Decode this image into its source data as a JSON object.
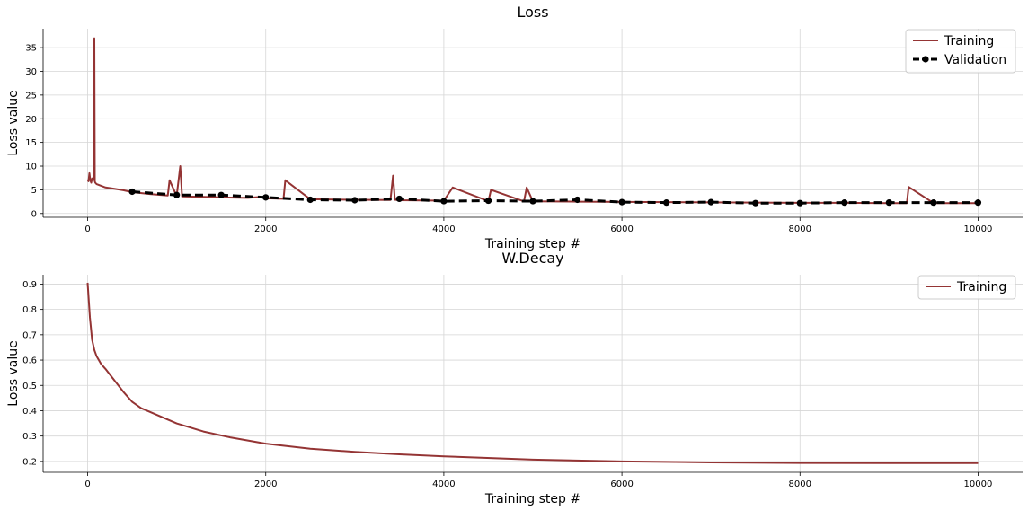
{
  "colors": {
    "training": "#943434",
    "validation": "#000000"
  },
  "chart_data": [
    {
      "type": "line",
      "title": "Loss",
      "xlabel": "Training step #",
      "ylabel": "Loss value",
      "xlim": [
        -500,
        10500
      ],
      "ylim": [
        -0.8,
        39
      ],
      "xticks": [
        0,
        2000,
        4000,
        6000,
        8000,
        10000
      ],
      "yticks": [
        0,
        5,
        10,
        15,
        20,
        25,
        30,
        35
      ],
      "grid": true,
      "legend": "top-right",
      "legend_entries": [
        "Training",
        "Validation"
      ],
      "series": [
        {
          "name": "Training",
          "x": [
            0,
            10,
            20,
            30,
            40,
            50,
            60,
            70,
            75,
            80,
            85,
            100,
            200,
            300,
            400,
            500,
            700,
            900,
            920,
            1000,
            1040,
            1060,
            1300,
            1500,
            1800,
            1950,
            2000,
            2200,
            2220,
            2500,
            3000,
            3400,
            3430,
            3450,
            3500,
            4000,
            4100,
            4500,
            4530,
            4900,
            4930,
            5000,
            5500,
            6000,
            6500,
            7000,
            7500,
            8000,
            8500,
            9000,
            9200,
            9220,
            9500,
            10000
          ],
          "y": [
            7.2,
            6.8,
            8.5,
            7.0,
            6.5,
            7.4,
            7.0,
            7.5,
            37.0,
            6.8,
            6.5,
            6.2,
            5.5,
            5.2,
            4.9,
            4.5,
            4.1,
            3.8,
            7.0,
            3.7,
            10.0,
            3.6,
            3.5,
            3.4,
            3.3,
            3.5,
            3.2,
            3.1,
            7.0,
            3.0,
            2.9,
            2.85,
            8.0,
            2.9,
            2.8,
            2.7,
            5.5,
            2.6,
            5.0,
            2.55,
            5.5,
            2.55,
            2.5,
            2.45,
            2.4,
            2.35,
            2.3,
            2.25,
            2.25,
            2.2,
            2.2,
            5.6,
            2.2,
            2.2
          ]
        },
        {
          "name": "Validation",
          "x": [
            500,
            1000,
            1500,
            2000,
            2500,
            3000,
            3500,
            4000,
            4500,
            5000,
            5500,
            6000,
            6500,
            7000,
            7500,
            8000,
            8500,
            9000,
            9500,
            10000
          ],
          "y": [
            4.6,
            3.9,
            3.9,
            3.4,
            2.9,
            2.8,
            3.1,
            2.6,
            2.7,
            2.6,
            2.9,
            2.4,
            2.3,
            2.4,
            2.2,
            2.2,
            2.3,
            2.3,
            2.3,
            2.3
          ]
        }
      ]
    },
    {
      "type": "line",
      "title": "W.Decay",
      "xlabel": "Training step #",
      "ylabel": "Loss value",
      "xlim": [
        -500,
        10500
      ],
      "ylim": [
        0.157,
        0.937
      ],
      "xticks": [
        0,
        2000,
        4000,
        6000,
        8000,
        10000
      ],
      "yticks": [
        0.2,
        0.3,
        0.4,
        0.5,
        0.6,
        0.7,
        0.8,
        0.9
      ],
      "grid": true,
      "legend": "top-right",
      "legend_entries": [
        "Training"
      ],
      "series": [
        {
          "name": "Training",
          "x": [
            0,
            25,
            50,
            75,
            100,
            150,
            200,
            300,
            400,
            500,
            600,
            800,
            1000,
            1300,
            1600,
            2000,
            2500,
            3000,
            3500,
            4000,
            5000,
            6000,
            7000,
            8000,
            9000,
            10000
          ],
          "y": [
            0.905,
            0.77,
            0.68,
            0.64,
            0.615,
            0.585,
            0.565,
            0.52,
            0.475,
            0.435,
            0.41,
            0.38,
            0.35,
            0.318,
            0.295,
            0.27,
            0.25,
            0.238,
            0.228,
            0.22,
            0.207,
            0.2,
            0.196,
            0.194,
            0.193,
            0.193
          ]
        }
      ]
    }
  ]
}
